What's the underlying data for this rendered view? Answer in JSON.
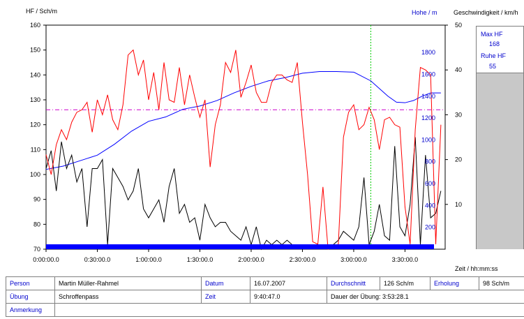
{
  "axes": {
    "left_title": "HF / Sch/m",
    "right_title_height": "Hohe / m",
    "right_title_speed": "Geschwindigkeit / km/h",
    "x_title": "Zeit / hh:mm:ss",
    "left_ticks": [
      "160",
      "150",
      "140",
      "130",
      "120",
      "110",
      "100",
      "90",
      "80",
      "70"
    ],
    "height_ticks": [
      "1800",
      "1600",
      "1400",
      "1200",
      "1000",
      "800",
      "600",
      "400",
      "200"
    ],
    "speed_ticks": [
      "50",
      "40",
      "30",
      "20",
      "10"
    ],
    "x_ticks": [
      "0:00:00.0",
      "0:30:00.0",
      "1:00:00.0",
      "1:30:00.0",
      "2:00:00.0",
      "2:30:00.0",
      "3:00:00.0",
      "3:30:00.0"
    ]
  },
  "side": {
    "max_label": "Max HF",
    "max_value": "168",
    "rest_label": "Ruhe HF",
    "rest_value": "55"
  },
  "info": {
    "person_label": "Person",
    "person_value": "Martin Müller-Rahmel",
    "date_label": "Datum",
    "date_value": "16.07.2007",
    "avg_label": "Durchschnitt",
    "avg_value": "126 Sch/m",
    "recovery_label": "Erholung",
    "recovery_value": "98 Sch/m",
    "exercise_label": "Übung",
    "exercise_value": "Schroffenpass",
    "time_label": "Zeit",
    "time_value": "9:40:47.0",
    "duration_text": "Dauer der Übung: 3:53:28.1",
    "note_label": "Anmerkung"
  },
  "colors": {
    "heart_rate": "#ff0000",
    "altitude": "#0000ff",
    "speed": "#000000",
    "average": "#cc00cc",
    "marker": "#00cc00",
    "bar": "#0000ff"
  },
  "chart_data": {
    "type": "line",
    "x_unit": "minutes",
    "xlim": [
      0,
      233.5
    ],
    "ylim_hr": [
      70,
      160
    ],
    "ylim_alt": [
      0,
      2050
    ],
    "ylim_speed": [
      0,
      50
    ],
    "average_hr": 126,
    "marker_minute": 190,
    "series": [
      {
        "name": "HF",
        "axis": "hr",
        "x": [
          0,
          3,
          6,
          9,
          12,
          15,
          18,
          21,
          24,
          27,
          30,
          33,
          36,
          39,
          42,
          45,
          48,
          51,
          54,
          57,
          60,
          63,
          66,
          69,
          72,
          75,
          78,
          81,
          84,
          87,
          90,
          93,
          96,
          99,
          102,
          105,
          108,
          111,
          114,
          117,
          120,
          123,
          126,
          129,
          132,
          135,
          138,
          141,
          144,
          147,
          150,
          153,
          156,
          159,
          162,
          165,
          168,
          171,
          174,
          177,
          180,
          183,
          186,
          189,
          192,
          195,
          198,
          201,
          204,
          207,
          210,
          213,
          216,
          219,
          222,
          225,
          228,
          231
        ],
        "y": [
          108,
          100,
          112,
          118,
          114,
          121,
          125,
          126,
          129,
          117,
          130,
          124,
          132,
          122,
          118,
          128,
          148,
          150,
          140,
          146,
          130,
          141,
          126,
          145,
          130,
          129,
          143,
          128,
          140,
          131,
          123,
          130,
          103,
          120,
          128,
          145,
          141,
          150,
          131,
          137,
          144,
          133,
          129,
          129,
          137,
          140,
          140,
          138,
          137,
          145,
          121,
          100,
          73,
          72,
          95,
          70,
          71,
          72,
          115,
          125,
          128,
          118,
          120,
          127,
          122,
          110,
          122,
          123,
          120,
          119,
          87,
          72,
          118,
          143,
          142,
          140,
          72,
          120
        ]
      },
      {
        "name": "Höhe",
        "axis": "alt",
        "x": [
          0,
          10,
          20,
          30,
          40,
          50,
          60,
          70,
          80,
          90,
          100,
          110,
          120,
          130,
          140,
          150,
          160,
          170,
          180,
          190,
          200,
          205,
          210,
          215,
          220,
          225,
          231
        ],
        "y": [
          730,
          760,
          810,
          860,
          960,
          1080,
          1170,
          1210,
          1280,
          1310,
          1360,
          1430,
          1490,
          1540,
          1570,
          1610,
          1625,
          1625,
          1620,
          1540,
          1400,
          1345,
          1340,
          1360,
          1400,
          1430,
          1430
        ]
      },
      {
        "name": "Geschwindigkeit",
        "axis": "speed",
        "x": [
          0,
          3,
          6,
          9,
          12,
          15,
          18,
          21,
          24,
          27,
          30,
          33,
          36,
          39,
          42,
          45,
          48,
          51,
          54,
          57,
          60,
          63,
          66,
          69,
          72,
          75,
          78,
          81,
          84,
          87,
          90,
          93,
          96,
          99,
          102,
          105,
          108,
          111,
          114,
          117,
          120,
          123,
          126,
          129,
          132,
          135,
          138,
          141,
          144,
          147,
          150,
          153,
          156,
          159,
          162,
          165,
          168,
          171,
          174,
          177,
          180,
          183,
          186,
          189,
          192,
          195,
          198,
          201,
          204,
          207,
          210,
          213,
          216,
          219,
          222,
          225,
          228,
          231
        ],
        "y": [
          18,
          22,
          13,
          24,
          18,
          21,
          15,
          18,
          5,
          18,
          18,
          20,
          1,
          18,
          16,
          14,
          11,
          13,
          18,
          9,
          7,
          9,
          11,
          6,
          14,
          18,
          8,
          10,
          6,
          7,
          2,
          10,
          7,
          5,
          6,
          6,
          4,
          3,
          2,
          5,
          1,
          5,
          0,
          2,
          1,
          2,
          1,
          2,
          1,
          1,
          0,
          1,
          0,
          0,
          1,
          0,
          1,
          2,
          4,
          3,
          2,
          5,
          16,
          1,
          4,
          10,
          3,
          2,
          23,
          5,
          3,
          10,
          25,
          1,
          21,
          7,
          8,
          13
        ]
      }
    ]
  }
}
